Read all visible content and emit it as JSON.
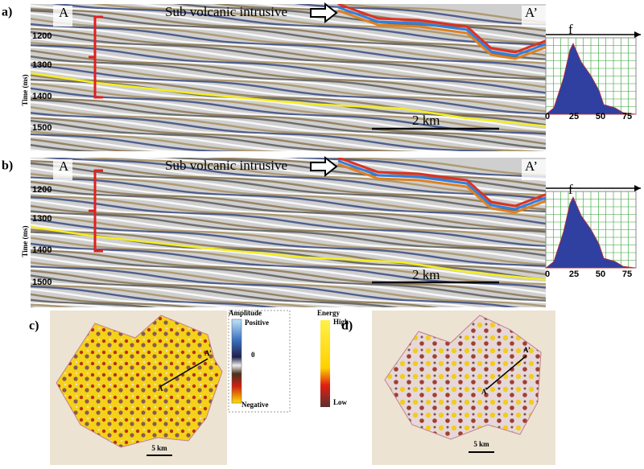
{
  "panels": [
    {
      "label": "a)",
      "left": "A",
      "right": "A’",
      "annotation": "Sub volcanic intrusive",
      "y_axis": "Time (ms)",
      "yticks": [
        "1200",
        "1300",
        "1400",
        "1500"
      ],
      "scale_bar": "2 km",
      "histogram": {
        "label": "f",
        "xticks": [
          "0",
          "25",
          "50",
          "75"
        ]
      }
    },
    {
      "label": "b)",
      "left": "A",
      "right": "A’",
      "annotation": "Sub volcanic intrusive",
      "y_axis": "Time (ms)",
      "yticks": [
        "1200",
        "1300",
        "1400",
        "1500"
      ],
      "scale_bar": "2 km",
      "histogram": {
        "label": "f",
        "xticks": [
          "0",
          "25",
          "50",
          "75"
        ]
      }
    }
  ],
  "maps": [
    {
      "label": "c)",
      "ends": [
        "A",
        "A’"
      ],
      "scale_bar": "5 km"
    },
    {
      "label": "d)",
      "ends": [
        "A",
        "A’"
      ],
      "scale_bar": "5 km"
    }
  ],
  "legends": {
    "amplitude": {
      "title": "Amplitude",
      "high": "Positive",
      "mid": "0",
      "low": "Negative"
    },
    "energy": {
      "title": "Energy",
      "high": "High",
      "low": "Low"
    }
  }
}
